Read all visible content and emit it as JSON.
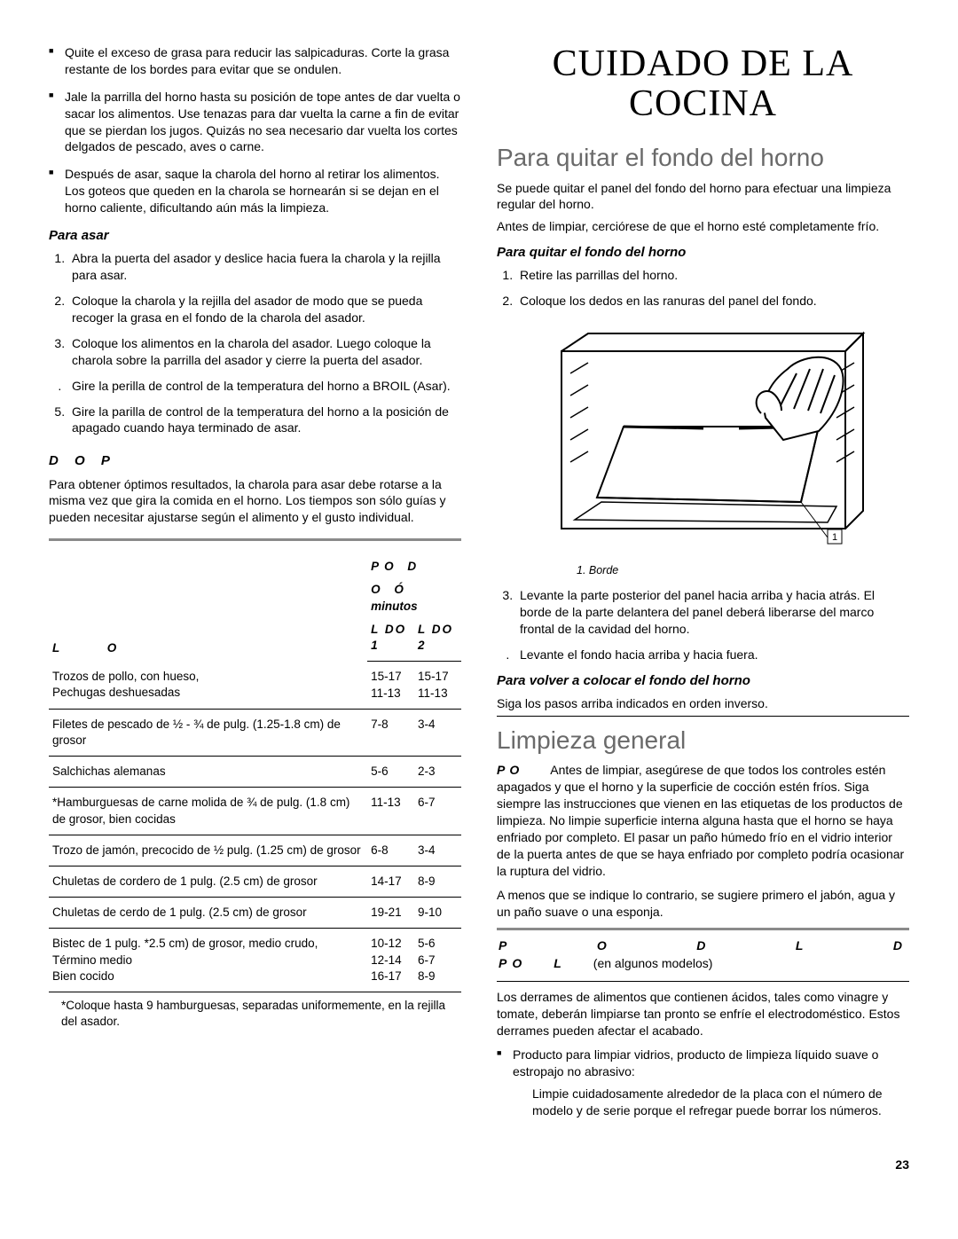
{
  "left": {
    "bullets": [
      "Quite el exceso de grasa para reducir las salpicaduras. Corte la grasa restante de los bordes para evitar que se ondulen.",
      "Jale la parrilla del horno hasta su posición de tope antes de dar vuelta o sacar los alimentos. Use tenazas para dar vuelta la carne a fin de evitar que se pierdan los jugos. Quizás no sea necesario dar vuelta los cortes delgados de pescado, aves o carne.",
      "Después de asar, saque la charola del horno al retirar los alimentos. Los goteos que queden en la charola se hornearán si se dejan en el horno caliente, dificultando aún más la limpieza."
    ],
    "para_asar_head": "Para asar",
    "para_asar_steps": [
      "Abra la puerta del asador y deslice hacia fuera la charola y la rejilla para asar.",
      "Coloque la charola y la rejilla del asador de modo que se pueda recoger la grasa en el fondo de la charola del asador.",
      "Coloque los alimentos en la charola del asador. Luego coloque la charola sobre la parrilla del asador y cierre la puerta del asador.",
      "Gire la perilla de control de la temperatura del horno a BROIL (Asar).",
      "Gire la parilla de control de la temperatura del horno a la posición de apagado cuando haya terminado de asar."
    ],
    "dop_head": "D  O P",
    "dop_para": "Para obtener óptimos resultados, la charola para asar debe rotarse a la misma vez que gira la comida en el horno. Los tiempos son sólo guías y pueden necesitar ajustarse según el alimento y el gusto individual.",
    "table": {
      "col_L": "L",
      "col_O": "O",
      "col_PO_D": "PO D",
      "col_OO": "O   Ó",
      "col_min": "minutos",
      "col_l1": "L  DO 1",
      "col_l2": "L  DO 2",
      "rows": [
        {
          "food": "Trozos de pollo, con hueso,\nPechugas deshuesadas",
          "s1": "15-17\n11-13",
          "s2": "15-17\n11-13"
        },
        {
          "food": "Filetes de pescado de ½ - ¾ de pulg. (1.25-1.8 cm) de grosor",
          "s1": "7-8",
          "s2": "3-4"
        },
        {
          "food": "Salchichas alemanas",
          "s1": "5-6",
          "s2": "2-3"
        },
        {
          "food": "*Hamburguesas de carne molida de ¾ de pulg. (1.8 cm) de grosor, bien cocidas",
          "s1": "11-13",
          "s2": "6-7"
        },
        {
          "food": "Trozo de jamón, precocido de ½ pulg. (1.25 cm) de grosor",
          "s1": "6-8",
          "s2": "3-4"
        },
        {
          "food": "Chuletas de cordero de 1 pulg. (2.5 cm) de grosor",
          "s1": "14-17",
          "s2": "8-9"
        },
        {
          "food": "Chuletas de cerdo de 1 pulg. (2.5 cm) de grosor",
          "s1": "19-21",
          "s2": "9-10"
        },
        {
          "food": "Bistec de 1 pulg. *2.5 cm) de grosor, medio crudo,\nTérmino medio\nBien cocido",
          "s1": "10-12\n12-14\n16-17",
          "s2": "5-6\n6-7\n8-9"
        }
      ],
      "footnote": "*Coloque hasta 9 hamburguesas, separadas uniformemente, en la rejilla del asador."
    }
  },
  "right": {
    "main_title": "CUIDADO DE LA COCINA",
    "sec1_title": "Para quitar el fondo del horno",
    "sec1_p1": "Se puede quitar el panel del fondo del horno para efectuar una limpieza regular del horno.",
    "sec1_p2": "Antes de limpiar, cerciórese de que el horno esté completamente frío.",
    "sec1_sub": "Para quitar el fondo del horno",
    "sec1_steps_a": [
      "Retire las parrillas del horno.",
      "Coloque los dedos en las ranuras del panel del fondo."
    ],
    "caption": "1. Borde",
    "sec1_steps_b": [
      "Levante la parte posterior del panel hacia arriba y hacia atrás. El borde de la parte delantera del panel deberá liberarse del marco frontal de la cavidad del horno.",
      "Levante el fondo hacia arriba y hacia fuera."
    ],
    "sec1_sub2": "Para volver a colocar el fondo del horno",
    "sec1_p3": "Siga los pasos arriba indicados en orden inverso.",
    "sec2_title": "Limpieza general",
    "sec2_po": "PO",
    "sec2_p1": "Antes de limpiar, asegúrese de que todos los controles estén apagados y que el horno y la superficie de cocción estén fríos. Siga siempre las instrucciones que vienen en las etiquetas de los productos de limpieza. No limpie superficie interna alguna hasta que el horno se haya enfriado por completo. El pasar un paño húmedo frío en el vidrio interior de la puerta antes de que se haya enfriado por completo podría ocasionar la ruptura del vidrio.",
    "sec2_p2": "A menos que se indique lo contrario, se sugiere primero el jabón, agua y un paño suave o una esponja.",
    "panel_row1": {
      "P": "P",
      "O": "O",
      "D": "D",
      "L": "L",
      "D2": "D"
    },
    "panel_row2": {
      "PO": "PO",
      "L": "L",
      "txt": "(en algunos modelos)"
    },
    "sec2_p3": "Los derrames de alimentos que contienen ácidos, tales como vinagre y tomate, deberán limpiarse tan pronto se enfríe el electrodoméstico. Estos derrames pueden afectar el acabado.",
    "sec2_bullet": "Producto para limpiar vidrios, producto de limpieza líquido suave o estropajo no abrasivo:",
    "sec2_bullet_p": "Limpie cuidadosamente alrededor de la placa con el número de modelo y de serie porque el refregar puede borrar los números."
  },
  "pagenum": "23"
}
